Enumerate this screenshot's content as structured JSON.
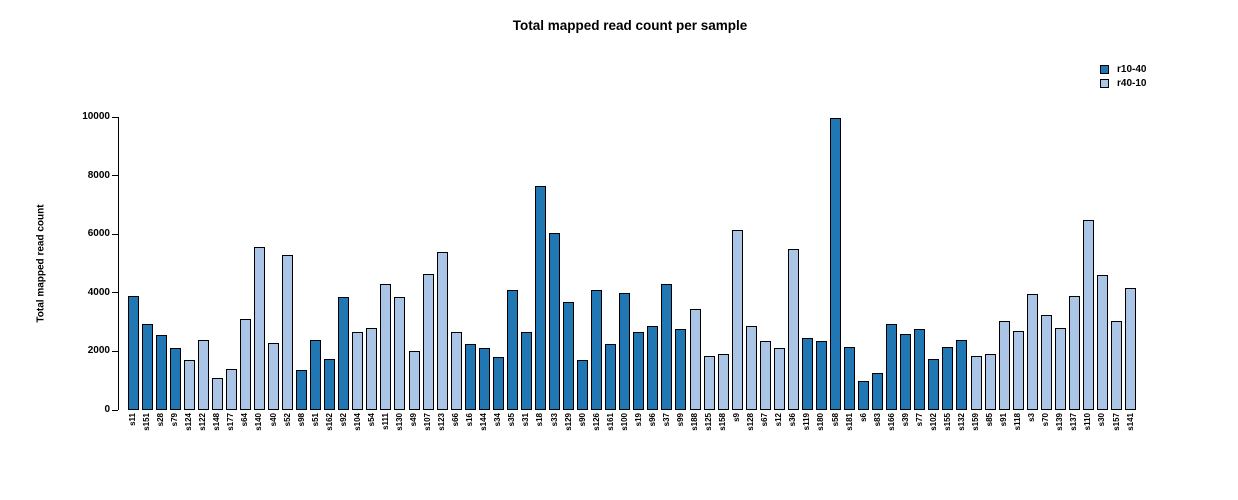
{
  "title": "Total mapped read count per sample",
  "y_axis": {
    "label": "Total mapped read count",
    "ticks": [
      0,
      2000,
      4000,
      6000,
      8000,
      10000
    ],
    "max": 10000
  },
  "legend": [
    {
      "label": "r10-40",
      "color": "#2077b4"
    },
    {
      "label": "r40-10",
      "color": "#aac5e6"
    }
  ],
  "colors": {
    "r10-40": "#2077b4",
    "r40-10": "#aac5e6",
    "bar_border": "#000000"
  },
  "chart_data": {
    "type": "bar",
    "title": "Total mapped read count per sample",
    "xlabel": "",
    "ylabel": "Total mapped read count",
    "ylim": [
      0,
      10000
    ],
    "grid": false,
    "legend_position": "top-right",
    "categories": [
      "s11",
      "s151",
      "s28",
      "s79",
      "s124",
      "s122",
      "s148",
      "s177",
      "s64",
      "s140",
      "s40",
      "s52",
      "s98",
      "s51",
      "s162",
      "s92",
      "s104",
      "s54",
      "s111",
      "s130",
      "s49",
      "s107",
      "s123",
      "s66",
      "s16",
      "s144",
      "s34",
      "s35",
      "s31",
      "s18",
      "s33",
      "s129",
      "s90",
      "s126",
      "s161",
      "s100",
      "s19",
      "s96",
      "s37",
      "s99",
      "s188",
      "s125",
      "s158",
      "s9",
      "s128",
      "s67",
      "s12",
      "s36",
      "s119",
      "s180",
      "s58",
      "s181",
      "s6",
      "s83",
      "s166",
      "s39",
      "s77",
      "s102",
      "s155",
      "s132",
      "s159",
      "s85",
      "s91",
      "s118",
      "s3",
      "s70",
      "s139",
      "s137",
      "s110",
      "s30",
      "s157",
      "s141"
    ],
    "values": [
      3900,
      2950,
      2550,
      2100,
      1700,
      2400,
      1100,
      1400,
      3100,
      5550,
      2300,
      5300,
      1350,
      2400,
      1750,
      3850,
      2650,
      2800,
      4300,
      3850,
      2000,
      4650,
      5400,
      2650,
      2250,
      2100,
      1800,
      4100,
      2650,
      7650,
      6050,
      3700,
      1700,
      4100,
      2250,
      4000,
      2650,
      2850,
      4300,
      2750,
      3450,
      1850,
      1900,
      6150,
      2850,
      2350,
      2100,
      5500,
      2450,
      2350,
      9950,
      2150,
      1000,
      1250,
      2950,
      2600,
      2750,
      1750,
      2150,
      2400,
      1850,
      1900,
      3050,
      2700,
      3950,
      3250,
      2800,
      3900,
      6500,
      4600,
      3050,
      4150
    ],
    "groups": [
      "r10-40",
      "r10-40",
      "r10-40",
      "r10-40",
      "r40-10",
      "r40-10",
      "r40-10",
      "r40-10",
      "r40-10",
      "r40-10",
      "r40-10",
      "r40-10",
      "r10-40",
      "r10-40",
      "r10-40",
      "r10-40",
      "r40-10",
      "r40-10",
      "r40-10",
      "r40-10",
      "r40-10",
      "r40-10",
      "r40-10",
      "r40-10",
      "r10-40",
      "r10-40",
      "r10-40",
      "r10-40",
      "r10-40",
      "r10-40",
      "r10-40",
      "r10-40",
      "r10-40",
      "r10-40",
      "r10-40",
      "r10-40",
      "r10-40",
      "r10-40",
      "r10-40",
      "r10-40",
      "r40-10",
      "r40-10",
      "r40-10",
      "r40-10",
      "r40-10",
      "r40-10",
      "r40-10",
      "r40-10",
      "r10-40",
      "r10-40",
      "r10-40",
      "r10-40",
      "r10-40",
      "r10-40",
      "r10-40",
      "r10-40",
      "r10-40",
      "r10-40",
      "r10-40",
      "r10-40",
      "r40-10",
      "r40-10",
      "r40-10",
      "r40-10",
      "r40-10",
      "r40-10",
      "r40-10",
      "r40-10",
      "r40-10",
      "r40-10",
      "r40-10",
      "r40-10"
    ]
  }
}
